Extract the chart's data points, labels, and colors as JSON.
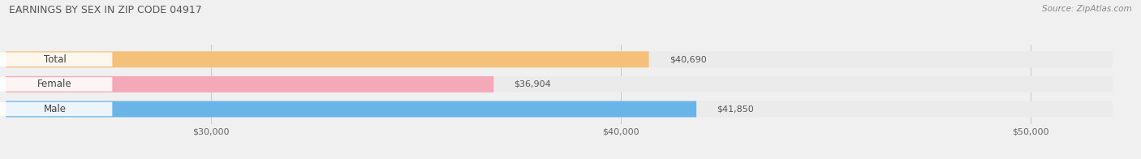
{
  "title": "EARNINGS BY SEX IN ZIP CODE 04917",
  "source": "Source: ZipAtlas.com",
  "categories": [
    "Male",
    "Female",
    "Total"
  ],
  "values": [
    41850,
    36904,
    40690
  ],
  "bar_colors": [
    "#6ab4e8",
    "#f4a8b8",
    "#f5c07a"
  ],
  "bar_labels": [
    "$41,850",
    "$36,904",
    "$40,690"
  ],
  "x_min": 25000,
  "x_max": 52000,
  "x_ticks": [
    30000,
    40000,
    50000
  ],
  "x_tick_labels": [
    "$30,000",
    "$40,000",
    "$50,000"
  ],
  "background_color": "#f0f0f0",
  "bar_bg_color": "#ebebeb",
  "title_fontsize": 9,
  "label_fontsize": 8.5,
  "tick_fontsize": 8
}
